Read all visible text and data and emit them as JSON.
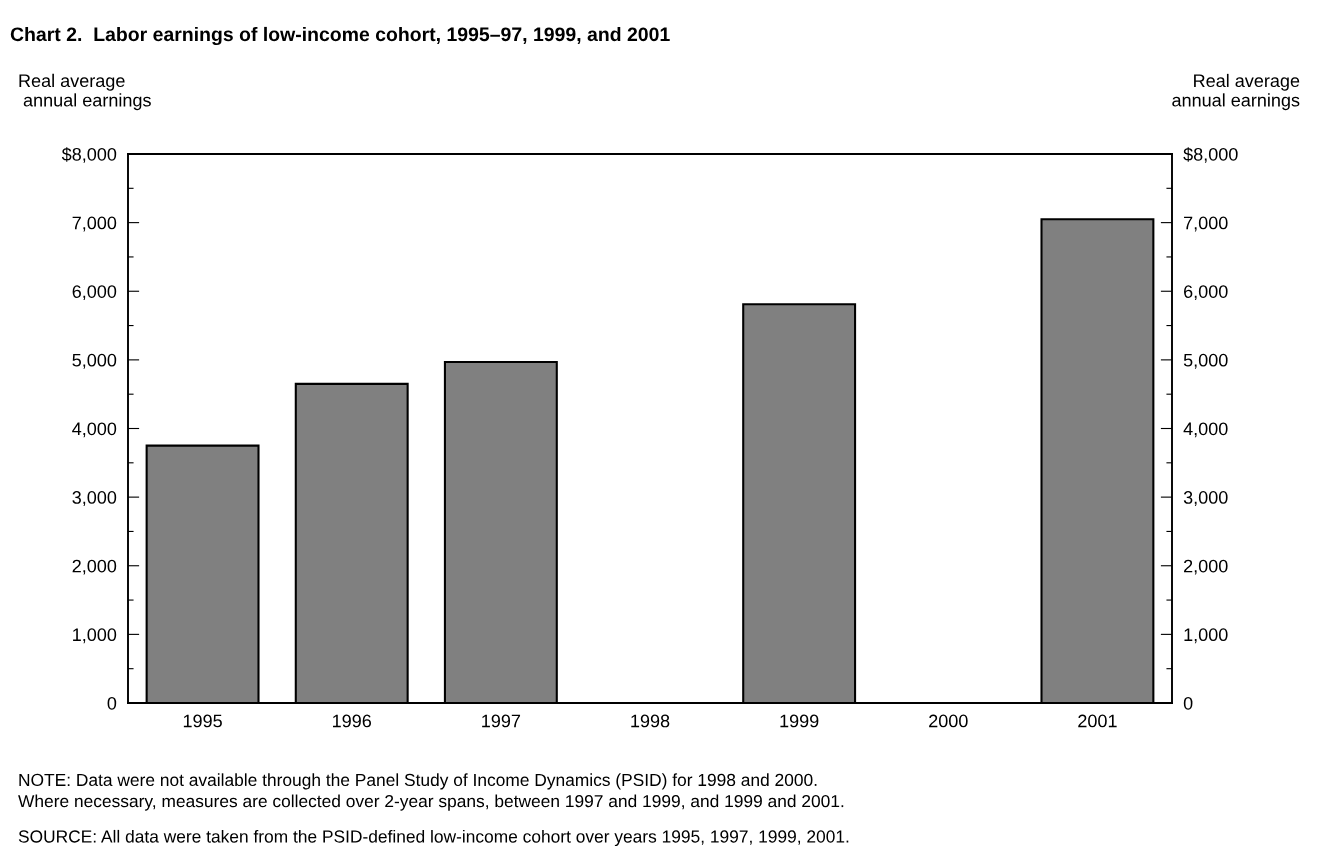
{
  "chart_data": {
    "type": "bar",
    "title": "Chart 2.  Labor earnings of low-income cohort, 1995–97, 1999, and 2001",
    "ylabel": "Real average\n annual earnings",
    "y2label": "Real average\n annual earnings",
    "categories": [
      "1995",
      "1996",
      "1997",
      "1998",
      "1999",
      "2000",
      "2001"
    ],
    "values": [
      3750,
      4650,
      4970,
      null,
      5810,
      null,
      7050
    ],
    "color": "#808080",
    "ylim": [
      0,
      8000
    ],
    "yticks": [
      0,
      {
        "value": 500,
        "label": null
      },
      {
        "value": 1000,
        "label": "1,000"
      },
      {
        "value": 1500,
        "label": null
      },
      {
        "value": 2000,
        "label": "2,000"
      },
      {
        "value": 2500,
        "label": null
      },
      {
        "value": 3000,
        "label": "3,000"
      },
      {
        "value": 3500,
        "label": null
      },
      {
        "value": 4000,
        "label": "4,000"
      },
      {
        "value": 4500,
        "label": null
      },
      {
        "value": 5000,
        "label": "5,000"
      },
      {
        "value": 5500,
        "label": null
      },
      {
        "value": 6000,
        "label": "6,000"
      },
      {
        "value": 6500,
        "label": null
      },
      {
        "value": 7000,
        "label": "7,000"
      },
      {
        "value": 7500,
        "label": null
      },
      {
        "value": 8000,
        "label": "$8,000"
      }
    ],
    "y2lim": [
      0,
      8000
    ],
    "y2ticks": [
      0,
      {
        "value": 500,
        "label": null
      },
      {
        "value": 1000,
        "label": "1,000"
      },
      {
        "value": 1500,
        "label": null
      },
      {
        "value": 2000,
        "label": "2,000"
      },
      {
        "value": 2500,
        "label": null
      },
      {
        "value": 3000,
        "label": "3,000"
      },
      {
        "value": 3500,
        "label": null
      },
      {
        "value": 4000,
        "label": "4,000"
      },
      {
        "value": 4500,
        "label": null
      },
      {
        "value": 5000,
        "label": "5,000"
      },
      {
        "value": 5500,
        "label": null
      },
      {
        "value": 6000,
        "label": "6,000"
      },
      {
        "value": 6500,
        "label": null
      },
      {
        "value": 7000,
        "label": "7,000"
      },
      {
        "value": 7500,
        "label": null
      },
      {
        "value": 8000,
        "label": "$8,000"
      }
    ],
    "grid": false,
    "annotations": [
      "NOTE: Data were not available through the Panel Study of Income Dynamics (PSID) for 1998 and 2000.\nWhere necessary, measures are collected over 2-year spans, between 1997 and 1999, and 1999 and 2001.",
      "SOURCE: All data were taken from the PSID-defined low-income cohort over years 1995, 1997, 1999, 2001."
    ]
  }
}
